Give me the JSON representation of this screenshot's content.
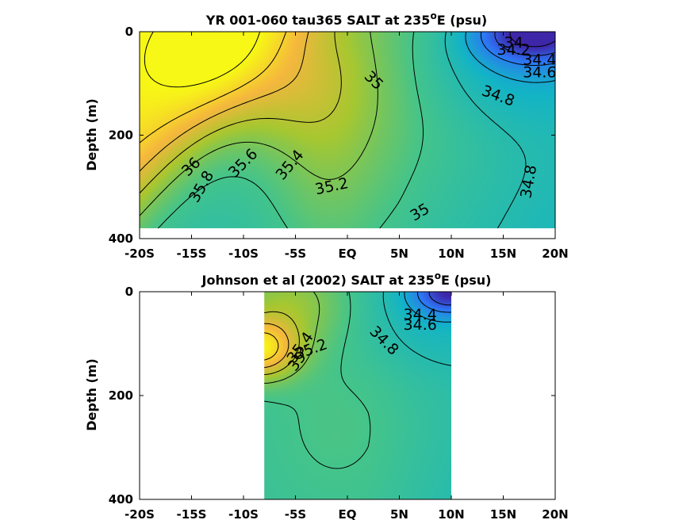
{
  "figure": {
    "background": "#ffffff"
  },
  "colormap": {
    "name": "parula",
    "range": [
      34.0,
      36.0
    ],
    "stops": [
      "#3e26a8",
      "#2e74f5",
      "#13b4c6",
      "#44c48b",
      "#a7c730",
      "#f5b73e",
      "#f7f815"
    ]
  },
  "chart_data": [
    {
      "type": "heatmap",
      "title_main": "YR 001-060 tau365 SALT at 235",
      "title_sup": "o",
      "title_end": "E (psu)",
      "ylabel": "Depth (m)",
      "xlim": [
        -20,
        20
      ],
      "ylim": [
        400,
        0
      ],
      "xticks": [
        -20,
        -15,
        -10,
        -5,
        0,
        5,
        10,
        15,
        20
      ],
      "xtick_labels": [
        "-20S",
        "-15S",
        "-10S",
        "-5S",
        "EQ",
        "5N",
        "10N",
        "15N",
        "20N"
      ],
      "yticks": [
        0,
        200,
        400
      ],
      "ytick_labels": [
        "0",
        "200",
        "400"
      ],
      "data_extent": {
        "lat": [
          -20,
          20
        ],
        "depth": [
          0,
          380
        ]
      },
      "grid": false,
      "field": "model",
      "contour_levels": [
        34.0,
        34.2,
        34.4,
        34.6,
        34.8,
        35.0,
        35.2,
        35.4,
        35.6,
        35.8,
        36.0
      ],
      "contour_labels": [
        {
          "text": "36",
          "lat": -15.0,
          "depth": 262,
          "angle": -45
        },
        {
          "text": "35.8",
          "lat": -14.0,
          "depth": 300,
          "angle": -60
        },
        {
          "text": "35.6",
          "lat": -10.0,
          "depth": 255,
          "angle": -45
        },
        {
          "text": "35.4",
          "lat": -5.5,
          "depth": 258,
          "angle": -50
        },
        {
          "text": "35.2",
          "lat": -1.5,
          "depth": 300,
          "angle": -12
        },
        {
          "text": "35",
          "lat": 2.5,
          "depth": 95,
          "angle": 45
        },
        {
          "text": "35",
          "lat": 7.0,
          "depth": 350,
          "angle": -30
        },
        {
          "text": "34.8",
          "lat": 14.5,
          "depth": 125,
          "angle": 20
        },
        {
          "text": "34.8",
          "lat": 17.5,
          "depth": 290,
          "angle": -80
        },
        {
          "text": "34",
          "lat": 16.0,
          "depth": 22,
          "angle": 0
        },
        {
          "text": "34.2",
          "lat": 16.0,
          "depth": 36,
          "angle": 0
        },
        {
          "text": "34.4",
          "lat": 18.5,
          "depth": 55,
          "angle": 0
        },
        {
          "text": "34.6",
          "lat": 18.5,
          "depth": 80,
          "angle": 0
        }
      ]
    },
    {
      "type": "heatmap",
      "title_main": "Johnson et al (2002) SALT at 235",
      "title_sup": "o",
      "title_end": "E (psu)",
      "ylabel": "Depth (m)",
      "xlim": [
        -20,
        20
      ],
      "ylim": [
        400,
        0
      ],
      "xticks": [
        -20,
        -15,
        -10,
        -5,
        0,
        5,
        10,
        15,
        20
      ],
      "xtick_labels": [
        "-20S",
        "-15S",
        "-10S",
        "-5S",
        "EQ",
        "5N",
        "10N",
        "15N",
        "20N"
      ],
      "yticks": [
        0,
        200,
        400
      ],
      "ytick_labels": [
        "0",
        "200",
        "400"
      ],
      "data_extent": {
        "lat": [
          -8,
          10
        ],
        "depth": [
          0,
          400
        ]
      },
      "grid": false,
      "field": "obs",
      "contour_levels": [
        34.2,
        34.4,
        34.6,
        34.8,
        35.0,
        35.2,
        35.4,
        35.6,
        35.8
      ],
      "contour_labels": [
        {
          "text": "34.4",
          "lat": 7.0,
          "depth": 45,
          "angle": 0
        },
        {
          "text": "34.6",
          "lat": 7.0,
          "depth": 65,
          "angle": 0
        },
        {
          "text": "34.8",
          "lat": 3.5,
          "depth": 95,
          "angle": 45
        },
        {
          "text": "35.4",
          "lat": -4.5,
          "depth": 108,
          "angle": -55
        },
        {
          "text": "35.2",
          "lat": -3.5,
          "depth": 112,
          "angle": -20
        },
        {
          "text": "35",
          "lat": -4.8,
          "depth": 135,
          "angle": -55
        }
      ]
    }
  ]
}
